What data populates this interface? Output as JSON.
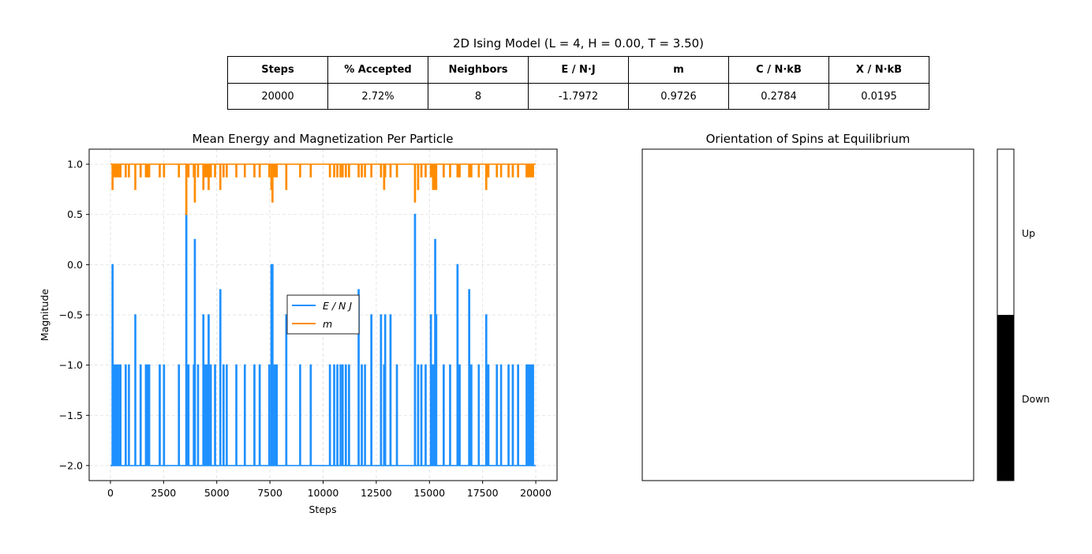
{
  "figure": {
    "title": "2D Ising Model (L = 4, H = 0.00, T = 3.50)"
  },
  "stats_table": {
    "headers": [
      "Steps",
      "% Accepted",
      "Neighbors",
      "E / N·J",
      "m",
      "C / N·kB",
      "X / N·kB"
    ],
    "values": [
      "20000",
      "2.72%",
      "8",
      "-1.7972",
      "0.9726",
      "0.2784",
      "0.0195"
    ]
  },
  "chart_data": [
    {
      "type": "line",
      "title": "Mean Energy and Magnetization Per Particle",
      "xlabel": "Steps",
      "ylabel": "Magnitude",
      "xlim": [
        -1000,
        21000
      ],
      "ylim": [
        -2.15,
        1.15
      ],
      "xticks": [
        0,
        2500,
        5000,
        7500,
        10000,
        12500,
        15000,
        17500,
        20000
      ],
      "xtick_labels": [
        "0",
        "2500",
        "5000",
        "7500",
        "10000",
        "12500",
        "15000",
        "17500",
        "20000"
      ],
      "yticks": [
        -2.0,
        -1.5,
        -1.0,
        -0.5,
        0.0,
        0.5,
        1.0
      ],
      "ytick_labels": [
        "−2.0",
        "−1.5",
        "−1.0",
        "−0.5",
        "0.0",
        "0.5",
        "1.0"
      ],
      "grid": true,
      "legend": "center",
      "series": [
        {
          "name": "E / N J",
          "color": "#1e90ff",
          "baseline": -2.0,
          "spikes": [
            [
              80,
              0.0
            ],
            [
              150,
              -1.0
            ],
            [
              250,
              -1.0
            ],
            [
              350,
              -1.0
            ],
            [
              450,
              -1.0
            ],
            [
              700,
              -1.0
            ],
            [
              850,
              -1.0
            ],
            [
              1150,
              -0.5
            ],
            [
              1400,
              -1.0
            ],
            [
              1650,
              -1.0
            ],
            [
              1750,
              -1.0
            ],
            [
              1800,
              -1.0
            ],
            [
              2300,
              -1.0
            ],
            [
              2500,
              -1.0
            ],
            [
              3200,
              -1.0
            ],
            [
              3550,
              0.5
            ],
            [
              3650,
              -1.0
            ],
            [
              3900,
              -1.0
            ],
            [
              3950,
              0.25
            ],
            [
              4100,
              -1.0
            ],
            [
              4350,
              -0.5
            ],
            [
              4450,
              -1.0
            ],
            [
              4550,
              -1.0
            ],
            [
              4600,
              -0.5
            ],
            [
              4700,
              -1.0
            ],
            [
              4900,
              -1.0
            ],
            [
              5150,
              -0.25
            ],
            [
              5300,
              -1.0
            ],
            [
              5450,
              -1.0
            ],
            [
              5900,
              -1.0
            ],
            [
              6300,
              -1.0
            ],
            [
              6750,
              -1.0
            ],
            [
              7000,
              -1.0
            ],
            [
              7450,
              -1.0
            ],
            [
              7550,
              0.0
            ],
            [
              7600,
              0.0
            ],
            [
              7700,
              -1.0
            ],
            [
              7800,
              -1.0
            ],
            [
              8250,
              -0.5
            ],
            [
              8900,
              -1.0
            ],
            [
              9400,
              -1.0
            ],
            [
              10300,
              -1.0
            ],
            [
              10500,
              -1.0
            ],
            [
              10650,
              -1.0
            ],
            [
              10800,
              -1.0
            ],
            [
              10900,
              -1.0
            ],
            [
              11050,
              -1.0
            ],
            [
              11200,
              -1.0
            ],
            [
              11650,
              -0.25
            ],
            [
              11800,
              -1.0
            ],
            [
              11950,
              -1.0
            ],
            [
              12250,
              -0.5
            ],
            [
              12700,
              -0.5
            ],
            [
              12850,
              -1.0
            ],
            [
              12900,
              -0.5
            ],
            [
              13150,
              -0.5
            ],
            [
              13450,
              -1.0
            ],
            [
              14300,
              0.5
            ],
            [
              14450,
              -1.0
            ],
            [
              14600,
              -1.0
            ],
            [
              14800,
              -1.0
            ],
            [
              15050,
              -0.5
            ],
            [
              15150,
              -1.0
            ],
            [
              15250,
              0.25
            ],
            [
              15300,
              -0.5
            ],
            [
              15650,
              -1.0
            ],
            [
              15950,
              -1.0
            ],
            [
              16300,
              0.0
            ],
            [
              16400,
              -1.0
            ],
            [
              16850,
              -0.25
            ],
            [
              16950,
              -1.0
            ],
            [
              17300,
              -1.0
            ],
            [
              17650,
              -0.5
            ],
            [
              17750,
              -1.0
            ],
            [
              18150,
              -1.0
            ],
            [
              18350,
              -1.0
            ],
            [
              18700,
              -1.0
            ],
            [
              18900,
              -1.0
            ],
            [
              19150,
              -1.0
            ],
            [
              19550,
              -1.0
            ],
            [
              19650,
              -1.0
            ],
            [
              19750,
              -1.0
            ],
            [
              19850,
              -1.0
            ]
          ]
        },
        {
          "name": "m",
          "color": "#ff8c00",
          "baseline": 1.0,
          "spikes": [
            [
              80,
              0.75
            ],
            [
              150,
              0.875
            ],
            [
              250,
              0.875
            ],
            [
              350,
              0.875
            ],
            [
              450,
              0.875
            ],
            [
              700,
              0.875
            ],
            [
              850,
              0.875
            ],
            [
              1150,
              0.75
            ],
            [
              1400,
              0.875
            ],
            [
              1650,
              0.875
            ],
            [
              1750,
              0.875
            ],
            [
              1800,
              0.875
            ],
            [
              2300,
              0.875
            ],
            [
              2500,
              0.875
            ],
            [
              3200,
              0.875
            ],
            [
              3550,
              0.5
            ],
            [
              3650,
              0.875
            ],
            [
              3900,
              0.875
            ],
            [
              3950,
              0.625
            ],
            [
              4100,
              0.875
            ],
            [
              4350,
              0.75
            ],
            [
              4450,
              0.875
            ],
            [
              4550,
              0.875
            ],
            [
              4600,
              0.75
            ],
            [
              4700,
              0.875
            ],
            [
              4900,
              0.875
            ],
            [
              5150,
              0.75
            ],
            [
              5300,
              0.875
            ],
            [
              5450,
              0.875
            ],
            [
              5900,
              0.875
            ],
            [
              6300,
              0.875
            ],
            [
              6750,
              0.875
            ],
            [
              7000,
              0.875
            ],
            [
              7450,
              0.875
            ],
            [
              7550,
              0.75
            ],
            [
              7600,
              0.625
            ],
            [
              7700,
              0.875
            ],
            [
              7800,
              0.875
            ],
            [
              8250,
              0.75
            ],
            [
              8900,
              0.875
            ],
            [
              9400,
              0.875
            ],
            [
              10300,
              0.875
            ],
            [
              10500,
              0.875
            ],
            [
              10650,
              0.875
            ],
            [
              10800,
              0.875
            ],
            [
              10900,
              0.875
            ],
            [
              11050,
              0.875
            ],
            [
              11200,
              0.875
            ],
            [
              11650,
              0.875
            ],
            [
              11800,
              0.875
            ],
            [
              11950,
              0.875
            ],
            [
              12250,
              0.875
            ],
            [
              12700,
              0.875
            ],
            [
              12850,
              0.75
            ],
            [
              12900,
              0.875
            ],
            [
              13150,
              0.875
            ],
            [
              13450,
              0.875
            ],
            [
              14300,
              0.625
            ],
            [
              14450,
              0.75
            ],
            [
              14600,
              0.875
            ],
            [
              14800,
              0.875
            ],
            [
              15050,
              0.875
            ],
            [
              15150,
              0.75
            ],
            [
              15250,
              0.75
            ],
            [
              15300,
              0.75
            ],
            [
              15650,
              0.875
            ],
            [
              15950,
              0.875
            ],
            [
              16300,
              0.875
            ],
            [
              16400,
              0.875
            ],
            [
              16850,
              0.875
            ],
            [
              16950,
              0.875
            ],
            [
              17300,
              0.875
            ],
            [
              17650,
              0.75
            ],
            [
              17750,
              0.875
            ],
            [
              18150,
              0.875
            ],
            [
              18350,
              0.875
            ],
            [
              18700,
              0.875
            ],
            [
              18900,
              0.875
            ],
            [
              19150,
              0.875
            ],
            [
              19550,
              0.875
            ],
            [
              19650,
              0.875
            ],
            [
              19750,
              0.875
            ],
            [
              19850,
              0.875
            ]
          ],
          "x_end": 20000
        }
      ]
    },
    {
      "type": "heatmap",
      "title": "Orientation of Spins at Equilibrium",
      "lattice_size": 4,
      "spins_all": "Up",
      "colorbar": {
        "labels": [
          "Up",
          "Down"
        ],
        "colors": [
          "#ffffff",
          "#000000"
        ]
      }
    }
  ]
}
